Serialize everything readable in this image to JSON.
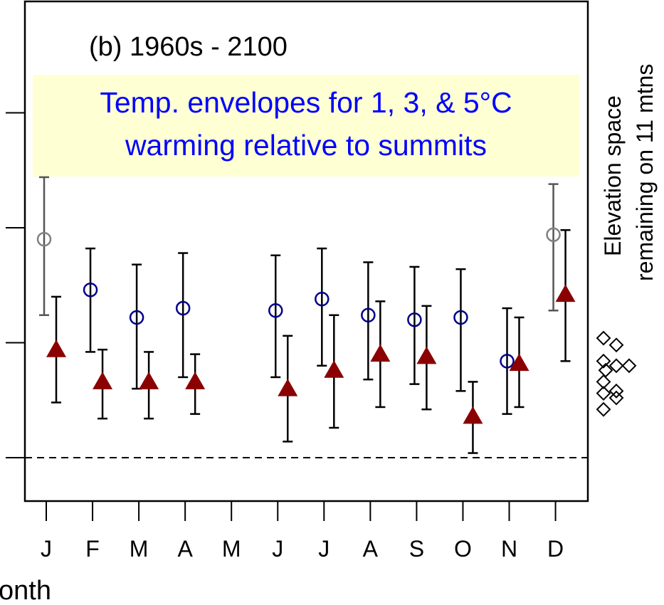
{
  "chart_data": {
    "type": "scatter",
    "panel_label": "(b) 1960s - 2100",
    "annotation_lines": [
      "Temp. envelopes for 1, 3, & 5°C",
      "warming relative to summits"
    ],
    "xlabel_visible": "onth",
    "right_label_lines": [
      "Elevation space",
      "remaining on 11 mtns"
    ],
    "categories": [
      "J",
      "F",
      "M",
      "A",
      "M",
      "J",
      "J",
      "A",
      "S",
      "O",
      "N",
      "D"
    ],
    "ylim": [
      -0.35,
      1.2
    ],
    "reference_line_y": 0,
    "series": [
      {
        "marker": "open-circle",
        "points": [
          {
            "x": 0,
            "y": 0.95,
            "lo": 0.62,
            "hi": 1.22,
            "color": "#808080"
          },
          {
            "x": 1,
            "y": 0.73,
            "lo": 0.46,
            "hi": 0.91,
            "color": "#00008b"
          },
          {
            "x": 2,
            "y": 0.61,
            "lo": 0.3,
            "hi": 0.84,
            "color": "#00008b"
          },
          {
            "x": 3,
            "y": 0.65,
            "lo": 0.35,
            "hi": 0.89,
            "color": "#00008b"
          },
          {
            "x": 5,
            "y": 0.64,
            "lo": 0.35,
            "hi": 0.88,
            "color": "#00008b"
          },
          {
            "x": 6,
            "y": 0.69,
            "lo": 0.4,
            "hi": 0.91,
            "color": "#00008b"
          },
          {
            "x": 7,
            "y": 0.62,
            "lo": 0.34,
            "hi": 0.85,
            "color": "#00008b"
          },
          {
            "x": 8,
            "y": 0.6,
            "lo": 0.32,
            "hi": 0.83,
            "color": "#00008b"
          },
          {
            "x": 9,
            "y": 0.61,
            "lo": 0.29,
            "hi": 0.82,
            "color": "#00008b"
          },
          {
            "x": 10,
            "y": 0.42,
            "lo": 0.19,
            "hi": 0.65,
            "color": "#00008b"
          },
          {
            "x": 11,
            "y": 0.97,
            "lo": 0.64,
            "hi": 1.19,
            "color": "#808080"
          }
        ]
      },
      {
        "marker": "filled-triangle",
        "color": "#8b0000",
        "points": [
          {
            "x": 0,
            "y": 0.47,
            "lo": 0.24,
            "hi": 0.7
          },
          {
            "x": 1,
            "y": 0.33,
            "lo": 0.17,
            "hi": 0.47
          },
          {
            "x": 2,
            "y": 0.33,
            "lo": 0.17,
            "hi": 0.46
          },
          {
            "x": 3,
            "y": 0.33,
            "lo": 0.19,
            "hi": 0.45
          },
          {
            "x": 5,
            "y": 0.3,
            "lo": 0.07,
            "hi": 0.53
          },
          {
            "x": 6,
            "y": 0.38,
            "lo": 0.13,
            "hi": 0.62
          },
          {
            "x": 7,
            "y": 0.45,
            "lo": 0.22,
            "hi": 0.68
          },
          {
            "x": 8,
            "y": 0.44,
            "lo": 0.21,
            "hi": 0.66
          },
          {
            "x": 9,
            "y": 0.18,
            "lo": 0.02,
            "hi": 0.33
          },
          {
            "x": 10,
            "y": 0.41,
            "lo": 0.22,
            "hi": 0.61
          },
          {
            "x": 11,
            "y": 0.71,
            "lo": 0.42,
            "hi": 0.99
          }
        ]
      }
    ],
    "diamond_series": {
      "marker": "open-diamond",
      "color": "#000000",
      "values": [
        0.52,
        0.49,
        0.42,
        0.4,
        0.4,
        0.38,
        0.33,
        0.29,
        0.28,
        0.26,
        0.21
      ]
    }
  }
}
